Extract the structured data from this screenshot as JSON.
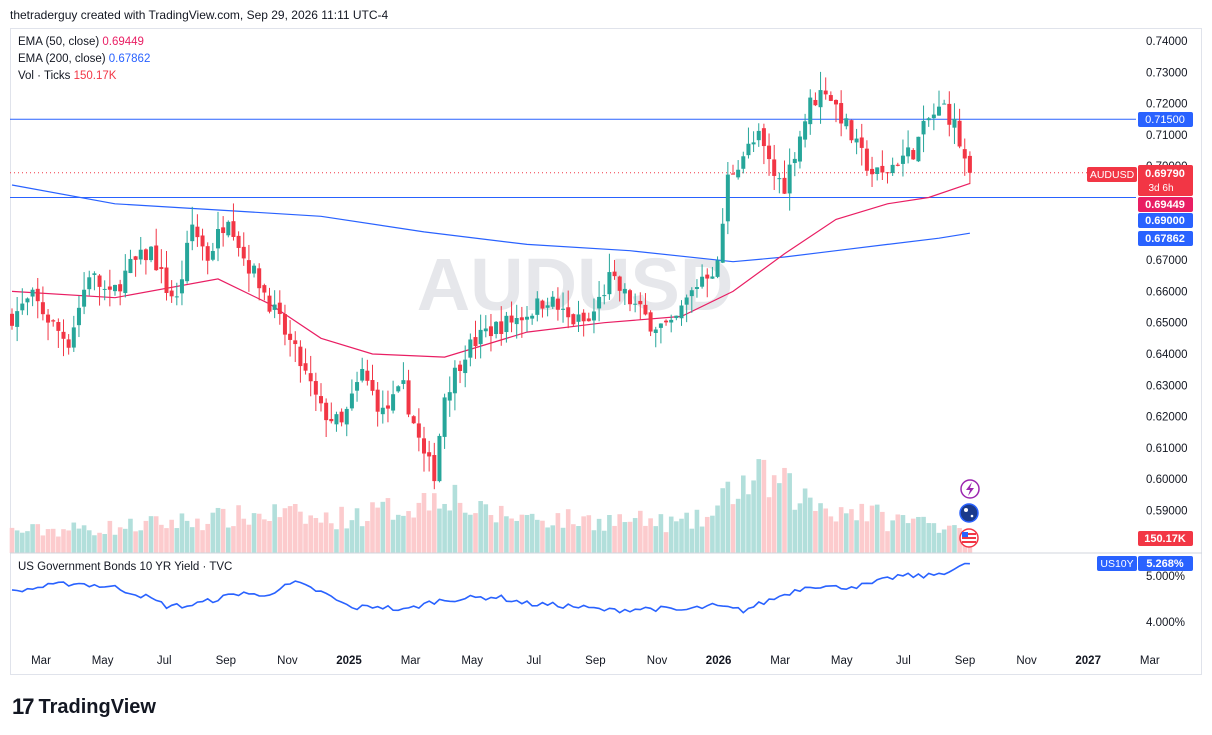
{
  "header": {
    "credit": "thetraderguy created with TradingView.com, Sep 29, 2026 11:11 UTC-4"
  },
  "legend": {
    "ema50_label": "EMA (50, close)",
    "ema50_value": "0.69449",
    "ema200_label": "EMA (200, close)",
    "ema200_value": "0.67862",
    "vol_label": "Vol · Ticks",
    "vol_value": "150.17K"
  },
  "lower_legend": "US Government Bonds 10 YR Yield · TVC",
  "watermark": "AUDUSD",
  "badges": {
    "r1": "0.71500",
    "symbol": "AUDUSD",
    "price": "0.69790",
    "countdown": "3d 6h",
    "ema50": "0.69449",
    "s1": "0.69000",
    "ema200": "0.67862",
    "volume": "150.17K",
    "yield_sym": "US10Y",
    "yield_val": "5.268%"
  },
  "footer": {
    "brand": "TradingView",
    "mark": "17"
  },
  "colors": {
    "up": "#26a69a",
    "down": "#f23645",
    "ema50": "#e91e63",
    "ema200": "#2962ff",
    "hline": "#2962ff",
    "yield": "#2962ff"
  },
  "icons": [
    "lightning-icon",
    "australia-flag-icon",
    "us-flag-icon"
  ],
  "chart_data": [
    {
      "type": "candlestick",
      "title": "AUDUSD",
      "timeframe": "weekly",
      "y_ticks": [
        "0.74000",
        "0.73000",
        "0.72000",
        "0.71000",
        "0.70000",
        "0.67000",
        "0.66000",
        "0.65000",
        "0.64000",
        "0.63000",
        "0.62000",
        "0.61000",
        "0.60000",
        "0.59000"
      ],
      "ylim": [
        0.584,
        0.744
      ],
      "x_ticks": [
        "Mar",
        "May",
        "Jul",
        "Sep",
        "Nov",
        "2025",
        "Mar",
        "May",
        "Jul",
        "Sep",
        "Nov",
        "2026",
        "Mar",
        "May",
        "Jul",
        "Sep",
        "Nov",
        "2027",
        "Mar"
      ],
      "horizontal_lines": [
        0.715,
        0.69
      ],
      "last_price": 0.6979,
      "ema50_last": 0.69449,
      "ema200_last": 0.67862,
      "anchors": [
        [
          0,
          0.652
        ],
        [
          4,
          0.658
        ],
        [
          8,
          0.649
        ],
        [
          11,
          0.644
        ],
        [
          15,
          0.666
        ],
        [
          19,
          0.658
        ],
        [
          23,
          0.668
        ],
        [
          27,
          0.673
        ],
        [
          30,
          0.661
        ],
        [
          32,
          0.657
        ],
        [
          35,
          0.681
        ],
        [
          38,
          0.671
        ],
        [
          42,
          0.685
        ],
        [
          45,
          0.671
        ],
        [
          48,
          0.663
        ],
        [
          52,
          0.65
        ],
        [
          56,
          0.637
        ],
        [
          60,
          0.622
        ],
        [
          64,
          0.617
        ],
        [
          68,
          0.634
        ],
        [
          72,
          0.621
        ],
        [
          76,
          0.629
        ],
        [
          80,
          0.607
        ],
        [
          82,
          0.602
        ],
        [
          84,
          0.627
        ],
        [
          88,
          0.641
        ],
        [
          92,
          0.647
        ],
        [
          96,
          0.65
        ],
        [
          100,
          0.653
        ],
        [
          104,
          0.658
        ],
        [
          108,
          0.651
        ],
        [
          112,
          0.65
        ],
        [
          116,
          0.664
        ],
        [
          120,
          0.657
        ],
        [
          124,
          0.65
        ],
        [
          128,
          0.648
        ],
        [
          131,
          0.657
        ],
        [
          134,
          0.665
        ],
        [
          137,
          0.668
        ],
        [
          139,
          0.696
        ],
        [
          142,
          0.704
        ],
        [
          145,
          0.709
        ],
        [
          148,
          0.697
        ],
        [
          150,
          0.694
        ],
        [
          152,
          0.705
        ],
        [
          155,
          0.72
        ],
        [
          158,
          0.725
        ],
        [
          161,
          0.716
        ],
        [
          164,
          0.706
        ],
        [
          167,
          0.698
        ],
        [
          169,
          0.697
        ],
        [
          172,
          0.702
        ],
        [
          175,
          0.705
        ],
        [
          178,
          0.715
        ],
        [
          181,
          0.719
        ],
        [
          183,
          0.713
        ],
        [
          185,
          0.7015
        ],
        [
          186,
          0.6979
        ]
      ],
      "ema50_points": [
        [
          0,
          0.66
        ],
        [
          20,
          0.658
        ],
        [
          40,
          0.664
        ],
        [
          50,
          0.656
        ],
        [
          60,
          0.645
        ],
        [
          70,
          0.64
        ],
        [
          84,
          0.639
        ],
        [
          100,
          0.647
        ],
        [
          115,
          0.65
        ],
        [
          130,
          0.652
        ],
        [
          140,
          0.66
        ],
        [
          150,
          0.672
        ],
        [
          160,
          0.683
        ],
        [
          170,
          0.688
        ],
        [
          178,
          0.69
        ],
        [
          186,
          0.6945
        ]
      ],
      "ema200_points": [
        [
          0,
          0.694
        ],
        [
          20,
          0.688
        ],
        [
          40,
          0.686
        ],
        [
          60,
          0.684
        ],
        [
          80,
          0.679
        ],
        [
          100,
          0.675
        ],
        [
          120,
          0.673
        ],
        [
          140,
          0.6695
        ],
        [
          150,
          0.671
        ],
        [
          160,
          0.673
        ],
        [
          170,
          0.675
        ],
        [
          180,
          0.677
        ],
        [
          186,
          0.6786
        ]
      ]
    },
    {
      "type": "bar",
      "title": "Vol · Ticks",
      "last_value": "150.17K",
      "anchors": [
        [
          0,
          0.3
        ],
        [
          20,
          0.35
        ],
        [
          35,
          0.45
        ],
        [
          45,
          0.5
        ],
        [
          52,
          0.55
        ],
        [
          60,
          0.45
        ],
        [
          70,
          0.55
        ],
        [
          80,
          0.7
        ],
        [
          84,
          0.9
        ],
        [
          90,
          0.55
        ],
        [
          100,
          0.5
        ],
        [
          110,
          0.45
        ],
        [
          120,
          0.45
        ],
        [
          130,
          0.4
        ],
        [
          136,
          0.5
        ],
        [
          140,
          0.9
        ],
        [
          146,
          1.0
        ],
        [
          150,
          0.9
        ],
        [
          155,
          0.7
        ],
        [
          160,
          0.6
        ],
        [
          165,
          0.6
        ],
        [
          170,
          0.45
        ],
        [
          175,
          0.45
        ],
        [
          180,
          0.4
        ],
        [
          186,
          0.4
        ]
      ]
    },
    {
      "type": "line",
      "title": "US Government Bonds 10 YR Yield",
      "y_ticks": [
        "5.000%",
        "4.000%"
      ],
      "last_value": 5.268,
      "anchors": [
        [
          0,
          4.65
        ],
        [
          5,
          4.75
        ],
        [
          12,
          4.85
        ],
        [
          20,
          4.75
        ],
        [
          26,
          4.55
        ],
        [
          30,
          4.35
        ],
        [
          34,
          4.35
        ],
        [
          38,
          4.45
        ],
        [
          45,
          4.65
        ],
        [
          48,
          4.55
        ],
        [
          55,
          4.85
        ],
        [
          60,
          4.65
        ],
        [
          66,
          4.3
        ],
        [
          71,
          4.35
        ],
        [
          76,
          4.25
        ],
        [
          82,
          4.45
        ],
        [
          86,
          4.5
        ],
        [
          94,
          4.55
        ],
        [
          100,
          4.4
        ],
        [
          108,
          4.35
        ],
        [
          116,
          4.25
        ],
        [
          124,
          4.3
        ],
        [
          130,
          4.25
        ],
        [
          136,
          4.35
        ],
        [
          142,
          4.25
        ],
        [
          150,
          4.6
        ],
        [
          155,
          4.8
        ],
        [
          160,
          4.75
        ],
        [
          166,
          4.8
        ],
        [
          172,
          5.0
        ],
        [
          178,
          5.0
        ],
        [
          183,
          5.15
        ],
        [
          186,
          5.268
        ]
      ]
    }
  ]
}
